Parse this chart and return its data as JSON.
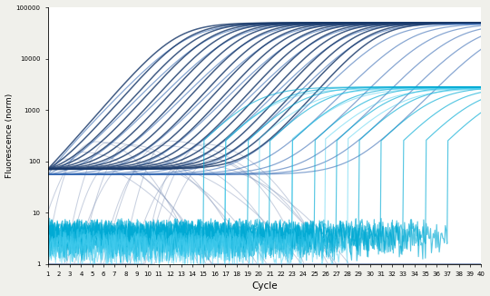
{
  "xlabel": "Cycle",
  "ylabel": "Fluorescence (norm)",
  "background_color": "#f0f0eb",
  "plot_bg": "#ffffff",
  "ylim": [
    1,
    100000
  ],
  "xlim": [
    1,
    40
  ],
  "x_ticks": [
    1,
    2,
    3,
    4,
    5,
    6,
    7,
    8,
    9,
    10,
    11,
    12,
    13,
    14,
    15,
    16,
    17,
    18,
    19,
    20,
    21,
    22,
    23,
    24,
    25,
    26,
    27,
    28,
    29,
    30,
    31,
    32,
    33,
    34,
    35,
    36,
    37,
    38,
    39,
    40
  ],
  "navy_cts": [
    9,
    10,
    11,
    12,
    13,
    14,
    15,
    16,
    17,
    18,
    19,
    20,
    21,
    22,
    23,
    24,
    25,
    26,
    27
  ],
  "navy_plateau": 50000,
  "navy_baseline": 70,
  "navy_color": "#1a3a6b",
  "navy_k": 0.58,
  "midblue_cts": [
    10,
    12,
    14,
    16,
    18,
    20,
    22,
    24,
    26,
    28,
    30,
    32,
    34,
    36,
    38
  ],
  "midblue_plateau": 48000,
  "midblue_baseline": 55,
  "midblue_color": "#3a6db5",
  "midblue_k": 0.52,
  "cyan_cts": [
    16,
    18,
    20,
    22,
    24,
    26,
    28,
    30,
    32,
    34,
    36,
    38
  ],
  "cyan_plateau": 2800,
  "cyan_baseline": 3,
  "cyan_color": "#00aad4",
  "cyan_k": 0.52,
  "lcyan_cts": [
    18,
    21,
    24,
    27,
    29
  ],
  "lcyan_plateau": 2600,
  "lcyan_baseline": 2,
  "lcyan_color": "#44ccee",
  "lcyan_k": 0.48,
  "gray_cts": [
    2,
    3,
    4,
    5,
    6,
    7,
    8,
    9,
    10,
    11,
    12,
    13,
    14,
    15
  ],
  "gray_color": "#8899aa",
  "gray_plateau_range": [
    80,
    250
  ]
}
